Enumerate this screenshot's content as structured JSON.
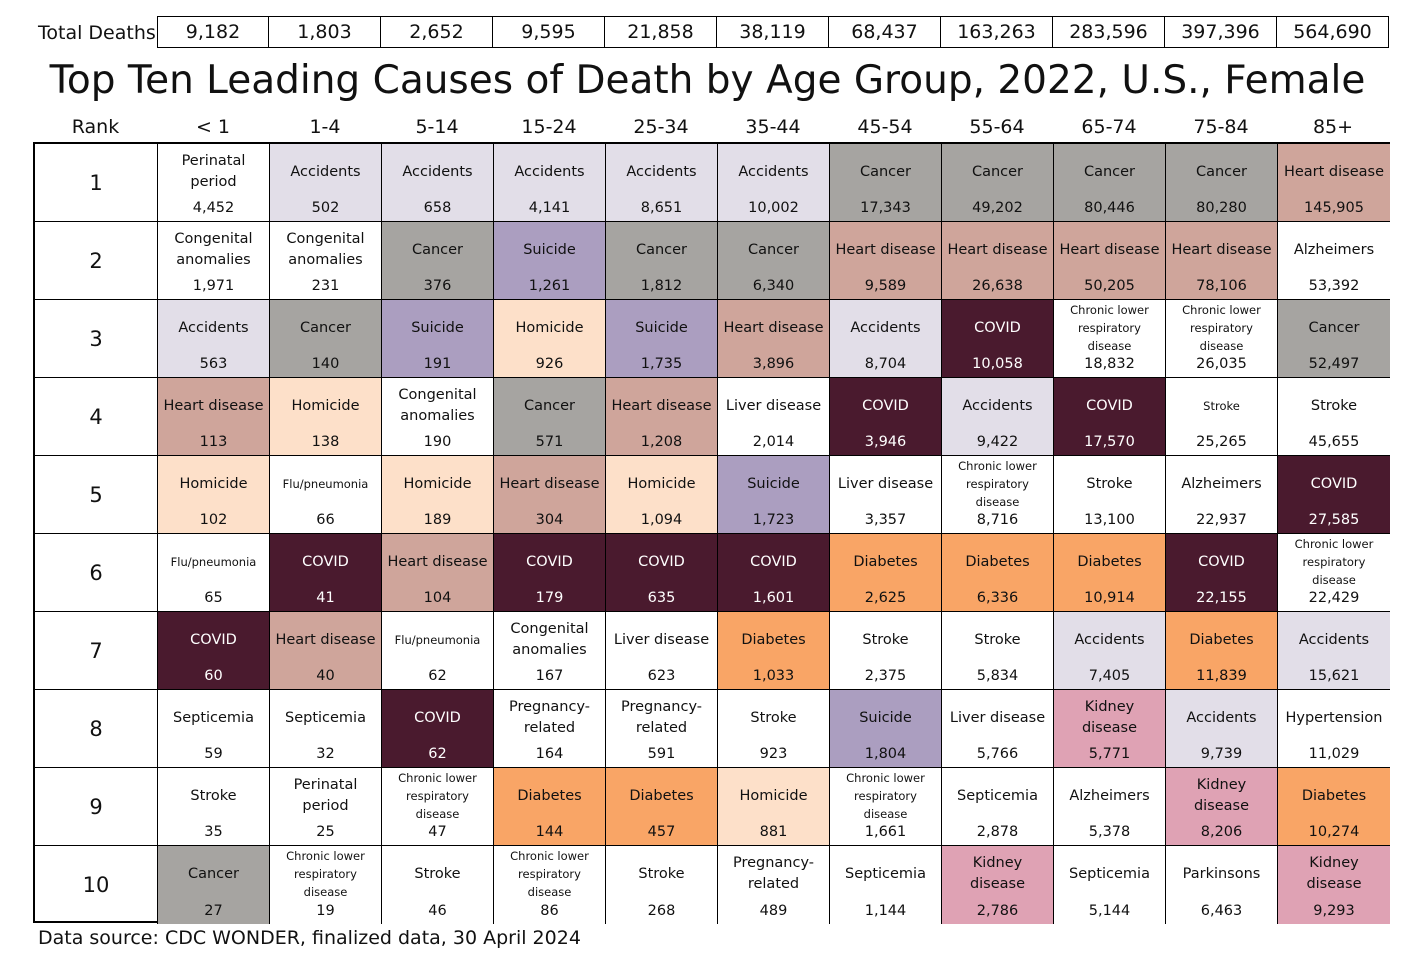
{
  "totals": {
    "label": "Total Deaths",
    "values": [
      "9,182",
      "1,803",
      "2,652",
      "9,595",
      "21,858",
      "38,119",
      "68,437",
      "163,263",
      "283,596",
      "397,396",
      "564,690"
    ]
  },
  "title": "Top Ten Leading Causes of Death by Age Group, 2022, U.S., Female",
  "header": {
    "rank_label": "Rank",
    "age_groups": [
      "< 1",
      "1-4",
      "5-14",
      "15-24",
      "25-34",
      "35-44",
      "45-54",
      "55-64",
      "65-74",
      "75-84",
      "85+"
    ]
  },
  "colors": {
    "Accidents": "#e2dee8",
    "Cancer": "#a6a4a1",
    "Heart disease": "#cfa59b",
    "Suicide": "#ab9ec0",
    "Homicide": "#fde0c9",
    "COVID": "#4a1a2e",
    "Diabetes": "#f9a566",
    "Kidney disease": "#dfa2b4",
    "Other": "#ffffff"
  },
  "chart_data": {
    "type": "table",
    "title": "Top Ten Leading Causes of Death by Age Group, 2022, U.S., Female",
    "columns": [
      "< 1",
      "1-4",
      "5-14",
      "15-24",
      "25-34",
      "35-44",
      "45-54",
      "55-64",
      "65-74",
      "75-84",
      "85+"
    ],
    "ranks": [
      "1",
      "2",
      "3",
      "4",
      "5",
      "6",
      "7",
      "8",
      "9",
      "10"
    ],
    "rows": [
      [
        {
          "cause": "Perinatal period",
          "count": "4,452",
          "category": "Other",
          "value": 4452
        },
        {
          "cause": "Accidents",
          "count": "502",
          "category": "Accidents",
          "value": 502
        },
        {
          "cause": "Accidents",
          "count": "658",
          "category": "Accidents",
          "value": 658
        },
        {
          "cause": "Accidents",
          "count": "4,141",
          "category": "Accidents",
          "value": 4141
        },
        {
          "cause": "Accidents",
          "count": "8,651",
          "category": "Accidents",
          "value": 8651
        },
        {
          "cause": "Accidents",
          "count": "10,002",
          "category": "Accidents",
          "value": 10002
        },
        {
          "cause": "Cancer",
          "count": "17,343",
          "category": "Cancer",
          "value": 17343
        },
        {
          "cause": "Cancer",
          "count": "49,202",
          "category": "Cancer",
          "value": 49202
        },
        {
          "cause": "Cancer",
          "count": "80,446",
          "category": "Cancer",
          "value": 80446
        },
        {
          "cause": "Cancer",
          "count": "80,280",
          "category": "Cancer",
          "value": 80280
        },
        {
          "cause": "Heart disease",
          "count": "145,905",
          "category": "Heart disease",
          "value": 145905
        }
      ],
      [
        {
          "cause": "Congenital anomalies",
          "count": "1,971",
          "category": "Other",
          "value": 1971
        },
        {
          "cause": "Congenital anomalies",
          "count": "231",
          "category": "Other",
          "value": 231
        },
        {
          "cause": "Cancer",
          "count": "376",
          "category": "Cancer",
          "value": 376
        },
        {
          "cause": "Suicide",
          "count": "1,261",
          "category": "Suicide",
          "value": 1261
        },
        {
          "cause": "Cancer",
          "count": "1,812",
          "category": "Cancer",
          "value": 1812
        },
        {
          "cause": "Cancer",
          "count": "6,340",
          "category": "Cancer",
          "value": 6340
        },
        {
          "cause": "Heart disease",
          "count": "9,589",
          "category": "Heart disease",
          "value": 9589
        },
        {
          "cause": "Heart disease",
          "count": "26,638",
          "category": "Heart disease",
          "value": 26638
        },
        {
          "cause": "Heart disease",
          "count": "50,205",
          "category": "Heart disease",
          "value": 50205
        },
        {
          "cause": "Heart disease",
          "count": "78,106",
          "category": "Heart disease",
          "value": 78106
        },
        {
          "cause": "Alzheimers",
          "count": "53,392",
          "category": "Other",
          "value": 53392
        }
      ],
      [
        {
          "cause": "Accidents",
          "count": "563",
          "category": "Accidents",
          "value": 563
        },
        {
          "cause": "Cancer",
          "count": "140",
          "category": "Cancer",
          "value": 140
        },
        {
          "cause": "Suicide",
          "count": "191",
          "category": "Suicide",
          "value": 191
        },
        {
          "cause": "Homicide",
          "count": "926",
          "category": "Homicide",
          "value": 926
        },
        {
          "cause": "Suicide",
          "count": "1,735",
          "category": "Suicide",
          "value": 1735
        },
        {
          "cause": "Heart disease",
          "count": "3,896",
          "category": "Heart disease",
          "value": 3896
        },
        {
          "cause": "Accidents",
          "count": "8,704",
          "category": "Accidents",
          "value": 8704
        },
        {
          "cause": "COVID",
          "count": "10,058",
          "category": "COVID",
          "value": 10058
        },
        {
          "cause": "Chronic lower respiratory disease",
          "count": "18,832",
          "category": "Other",
          "value": 18832,
          "small": true
        },
        {
          "cause": "Chronic lower respiratory disease",
          "count": "26,035",
          "category": "Other",
          "value": 26035,
          "small": true
        },
        {
          "cause": "Cancer",
          "count": "52,497",
          "category": "Cancer",
          "value": 52497
        }
      ],
      [
        {
          "cause": "Heart disease",
          "count": "113",
          "category": "Heart disease",
          "value": 113
        },
        {
          "cause": "Homicide",
          "count": "138",
          "category": "Homicide",
          "value": 138
        },
        {
          "cause": "Congenital anomalies",
          "count": "190",
          "category": "Other",
          "value": 190
        },
        {
          "cause": "Cancer",
          "count": "571",
          "category": "Cancer",
          "value": 571
        },
        {
          "cause": "Heart disease",
          "count": "1,208",
          "category": "Heart disease",
          "value": 1208
        },
        {
          "cause": "Liver disease",
          "count": "2,014",
          "category": "Other",
          "value": 2014
        },
        {
          "cause": "COVID",
          "count": "3,946",
          "category": "COVID",
          "value": 3946
        },
        {
          "cause": "Accidents",
          "count": "9,422",
          "category": "Accidents",
          "value": 9422
        },
        {
          "cause": "COVID",
          "count": "17,570",
          "category": "COVID",
          "value": 17570
        },
        {
          "cause": "Stroke",
          "count": "25,265",
          "category": "Other",
          "value": 25265,
          "small": true
        },
        {
          "cause": "Stroke",
          "count": "45,655",
          "category": "Other",
          "value": 45655
        }
      ],
      [
        {
          "cause": "Homicide",
          "count": "102",
          "category": "Homicide",
          "value": 102
        },
        {
          "cause": "Flu/pneumonia",
          "count": "66",
          "category": "Other",
          "value": 66,
          "small": true
        },
        {
          "cause": "Homicide",
          "count": "189",
          "category": "Homicide",
          "value": 189
        },
        {
          "cause": "Heart disease",
          "count": "304",
          "category": "Heart disease",
          "value": 304
        },
        {
          "cause": "Homicide",
          "count": "1,094",
          "category": "Homicide",
          "value": 1094
        },
        {
          "cause": "Suicide",
          "count": "1,723",
          "category": "Suicide",
          "value": 1723
        },
        {
          "cause": "Liver disease",
          "count": "3,357",
          "category": "Other",
          "value": 3357
        },
        {
          "cause": "Chronic lower respiratory disease",
          "count": "8,716",
          "category": "Other",
          "value": 8716,
          "small": true
        },
        {
          "cause": "Stroke",
          "count": "13,100",
          "category": "Other",
          "value": 13100
        },
        {
          "cause": "Alzheimers",
          "count": "22,937",
          "category": "Other",
          "value": 22937
        },
        {
          "cause": "COVID",
          "count": "27,585",
          "category": "COVID",
          "value": 27585
        }
      ],
      [
        {
          "cause": "Flu/pneumonia",
          "count": "65",
          "category": "Other",
          "value": 65,
          "small": true
        },
        {
          "cause": "COVID",
          "count": "41",
          "category": "COVID",
          "value": 41
        },
        {
          "cause": "Heart disease",
          "count": "104",
          "category": "Heart disease",
          "value": 104
        },
        {
          "cause": "COVID",
          "count": "179",
          "category": "COVID",
          "value": 179
        },
        {
          "cause": "COVID",
          "count": "635",
          "category": "COVID",
          "value": 635
        },
        {
          "cause": "COVID",
          "count": "1,601",
          "category": "COVID",
          "value": 1601
        },
        {
          "cause": "Diabetes",
          "count": "2,625",
          "category": "Diabetes",
          "value": 2625
        },
        {
          "cause": "Diabetes",
          "count": "6,336",
          "category": "Diabetes",
          "value": 6336
        },
        {
          "cause": "Diabetes",
          "count": "10,914",
          "category": "Diabetes",
          "value": 10914
        },
        {
          "cause": "COVID",
          "count": "22,155",
          "category": "COVID",
          "value": 22155
        },
        {
          "cause": "Chronic lower respiratory disease",
          "count": "22,429",
          "category": "Other",
          "value": 22429,
          "small": true
        }
      ],
      [
        {
          "cause": "COVID",
          "count": "60",
          "category": "COVID",
          "value": 60
        },
        {
          "cause": "Heart disease",
          "count": "40",
          "category": "Heart disease",
          "value": 40
        },
        {
          "cause": "Flu/pneumonia",
          "count": "62",
          "category": "Other",
          "value": 62,
          "small": true
        },
        {
          "cause": "Congenital anomalies",
          "count": "167",
          "category": "Other",
          "value": 167
        },
        {
          "cause": "Liver disease",
          "count": "623",
          "category": "Other",
          "value": 623
        },
        {
          "cause": "Diabetes",
          "count": "1,033",
          "category": "Diabetes",
          "value": 1033
        },
        {
          "cause": "Stroke",
          "count": "2,375",
          "category": "Other",
          "value": 2375
        },
        {
          "cause": "Stroke",
          "count": "5,834",
          "category": "Other",
          "value": 5834
        },
        {
          "cause": "Accidents",
          "count": "7,405",
          "category": "Accidents",
          "value": 7405
        },
        {
          "cause": "Diabetes",
          "count": "11,839",
          "category": "Diabetes",
          "value": 11839
        },
        {
          "cause": "Accidents",
          "count": "15,621",
          "category": "Accidents",
          "value": 15621
        }
      ],
      [
        {
          "cause": "Septicemia",
          "count": "59",
          "category": "Other",
          "value": 59
        },
        {
          "cause": "Septicemia",
          "count": "32",
          "category": "Other",
          "value": 32
        },
        {
          "cause": "COVID",
          "count": "62",
          "category": "COVID",
          "value": 62
        },
        {
          "cause": "Pregnancy-related",
          "count": "164",
          "category": "Other",
          "value": 164
        },
        {
          "cause": "Pregnancy-related",
          "count": "591",
          "category": "Other",
          "value": 591
        },
        {
          "cause": "Stroke",
          "count": "923",
          "category": "Other",
          "value": 923
        },
        {
          "cause": "Suicide",
          "count": "1,804",
          "category": "Suicide",
          "value": 1804
        },
        {
          "cause": "Liver disease",
          "count": "5,766",
          "category": "Other",
          "value": 5766
        },
        {
          "cause": "Kidney disease",
          "count": "5,771",
          "category": "Kidney disease",
          "value": 5771
        },
        {
          "cause": "Accidents",
          "count": "9,739",
          "category": "Accidents",
          "value": 9739
        },
        {
          "cause": "Hypertension",
          "count": "11,029",
          "category": "Other",
          "value": 11029
        }
      ],
      [
        {
          "cause": "Stroke",
          "count": "35",
          "category": "Other",
          "value": 35
        },
        {
          "cause": "Perinatal period",
          "count": "25",
          "category": "Other",
          "value": 25
        },
        {
          "cause": "Chronic lower respiratory disease",
          "count": "47",
          "category": "Other",
          "value": 47,
          "small": true
        },
        {
          "cause": "Diabetes",
          "count": "144",
          "category": "Diabetes",
          "value": 144
        },
        {
          "cause": "Diabetes",
          "count": "457",
          "category": "Diabetes",
          "value": 457
        },
        {
          "cause": "Homicide",
          "count": "881",
          "category": "Homicide",
          "value": 881
        },
        {
          "cause": "Chronic lower respiratory disease",
          "count": "1,661",
          "category": "Other",
          "value": 1661,
          "small": true
        },
        {
          "cause": "Septicemia",
          "count": "2,878",
          "category": "Other",
          "value": 2878
        },
        {
          "cause": "Alzheimers",
          "count": "5,378",
          "category": "Other",
          "value": 5378
        },
        {
          "cause": "Kidney disease",
          "count": "8,206",
          "category": "Kidney disease",
          "value": 8206
        },
        {
          "cause": "Diabetes",
          "count": "10,274",
          "category": "Diabetes",
          "value": 10274
        }
      ],
      [
        {
          "cause": "Cancer",
          "count": "27",
          "category": "Cancer",
          "value": 27
        },
        {
          "cause": "Chronic lower respiratory disease",
          "count": "19",
          "category": "Other",
          "value": 19,
          "small": true
        },
        {
          "cause": "Stroke",
          "count": "46",
          "category": "Other",
          "value": 46
        },
        {
          "cause": "Chronic lower respiratory disease",
          "count": "86",
          "category": "Other",
          "value": 86,
          "small": true
        },
        {
          "cause": "Stroke",
          "count": "268",
          "category": "Other",
          "value": 268
        },
        {
          "cause": "Pregnancy-related",
          "count": "489",
          "category": "Other",
          "value": 489
        },
        {
          "cause": "Septicemia",
          "count": "1,144",
          "category": "Other",
          "value": 1144
        },
        {
          "cause": "Kidney disease",
          "count": "2,786",
          "category": "Kidney disease",
          "value": 2786
        },
        {
          "cause": "Septicemia",
          "count": "5,144",
          "category": "Other",
          "value": 5144
        },
        {
          "cause": "Parkinsons",
          "count": "6,463",
          "category": "Other",
          "value": 6463
        },
        {
          "cause": "Kidney disease",
          "count": "9,293",
          "category": "Kidney disease",
          "value": 9293
        }
      ]
    ]
  },
  "footer": {
    "source": "Data source: CDC WONDER, finalized data, 30 April 2024"
  }
}
